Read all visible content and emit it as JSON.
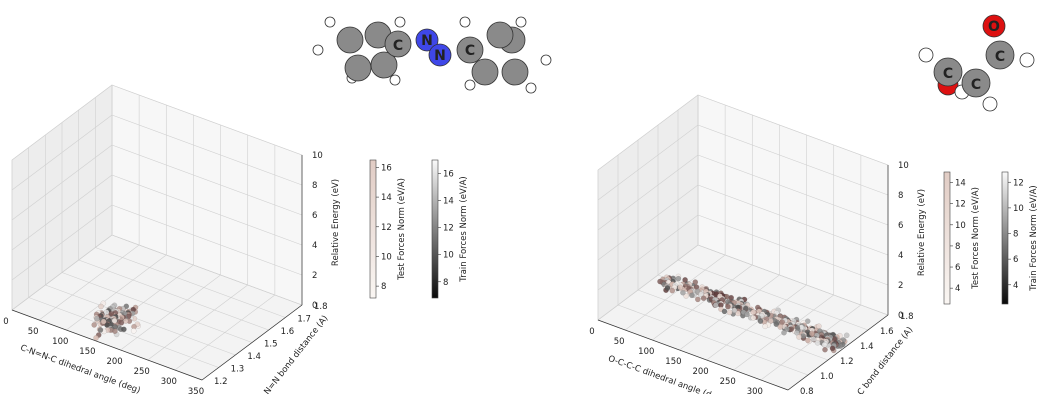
{
  "panels": [
    {
      "molecule": {
        "heavy_labels": [
          "C",
          "N",
          "N",
          "C"
        ]
      },
      "chart_data": {
        "type": "scatter",
        "projection": "3d",
        "xlabel": "C-N=N-C dihedral angle (deg)",
        "ylabel": "N=N bond distance (A)",
        "zlabel": "Relative Energy (eV)",
        "xlim": [
          0,
          350
        ],
        "ylim": [
          1.2,
          1.8
        ],
        "zlim": [
          0,
          10
        ],
        "xticks": [
          "0",
          "50",
          "100",
          "150",
          "200",
          "250",
          "300",
          "350"
        ],
        "yticks": [
          "1.2",
          "1.3",
          "1.4",
          "1.5",
          "1.6",
          "1.7",
          "1.8"
        ],
        "zticks": [
          "0",
          "2",
          "4",
          "6",
          "8",
          "10"
        ],
        "grid": true,
        "cluster": {
          "x_center": 150,
          "x_spread": 30,
          "y_center": 1.33,
          "y_spread": 0.08,
          "z_center": 0.3,
          "count": 140
        },
        "colorbars": [
          {
            "label": "Test Forces Norm (eV/A)",
            "ticks": [
              "8",
              "10",
              "12",
              "14",
              "16"
            ],
            "range": [
              7.2,
              16.5
            ],
            "colormap": "pink_r"
          },
          {
            "label": "Train Forces Norm (eV/A)",
            "ticks": [
              "8",
              "10",
              "12",
              "14",
              "16"
            ],
            "range": [
              6.8,
              17
            ],
            "colormap": "gray"
          }
        ]
      }
    },
    {
      "molecule": {
        "heavy_labels": [
          "O",
          "C",
          "C",
          "C"
        ]
      },
      "chart_data": {
        "type": "scatter",
        "projection": "3d",
        "xlabel": "O-C-C-C dihedral angle (deg)",
        "ylabel": "O-C bond distance (A)",
        "zlabel": "Relative Energy (eV)",
        "xlim": [
          0,
          350
        ],
        "ylim": [
          0.8,
          1.8
        ],
        "zlim": [
          0,
          10
        ],
        "xticks": [
          "0",
          "50",
          "100",
          "150",
          "200",
          "250",
          "300",
          "350"
        ],
        "yticks": [
          "0.8",
          "1.0",
          "1.2",
          "1.4",
          "1.6",
          "1.8"
        ],
        "zticks": [
          "0",
          "2",
          "4",
          "6",
          "8",
          "10"
        ],
        "grid": true,
        "band": {
          "x_range": [
            20,
            350
          ],
          "y_center": 1.35,
          "y_spread": 0.07,
          "z_center": 0.25,
          "count": 420
        },
        "colorbars": [
          {
            "label": "Test Forces Norm (eV/A)",
            "ticks": [
              "4",
              "6",
              "8",
              "10",
              "12",
              "14"
            ],
            "range": [
              2.5,
              15
            ],
            "colormap": "pink_r"
          },
          {
            "label": "Train Forces Norm (eV/A)",
            "ticks": [
              "4",
              "6",
              "8",
              "10",
              "12"
            ],
            "range": [
              2.5,
              12.8
            ],
            "colormap": "gray"
          }
        ]
      }
    }
  ],
  "colors": {
    "carbon": "#8a8a8a",
    "nitrogen": "#3f47e8",
    "oxygen": "#dd1111",
    "hydrogen": "#ffffff",
    "pane": "#f2f2f2",
    "grid": "#cfcfcf"
  }
}
